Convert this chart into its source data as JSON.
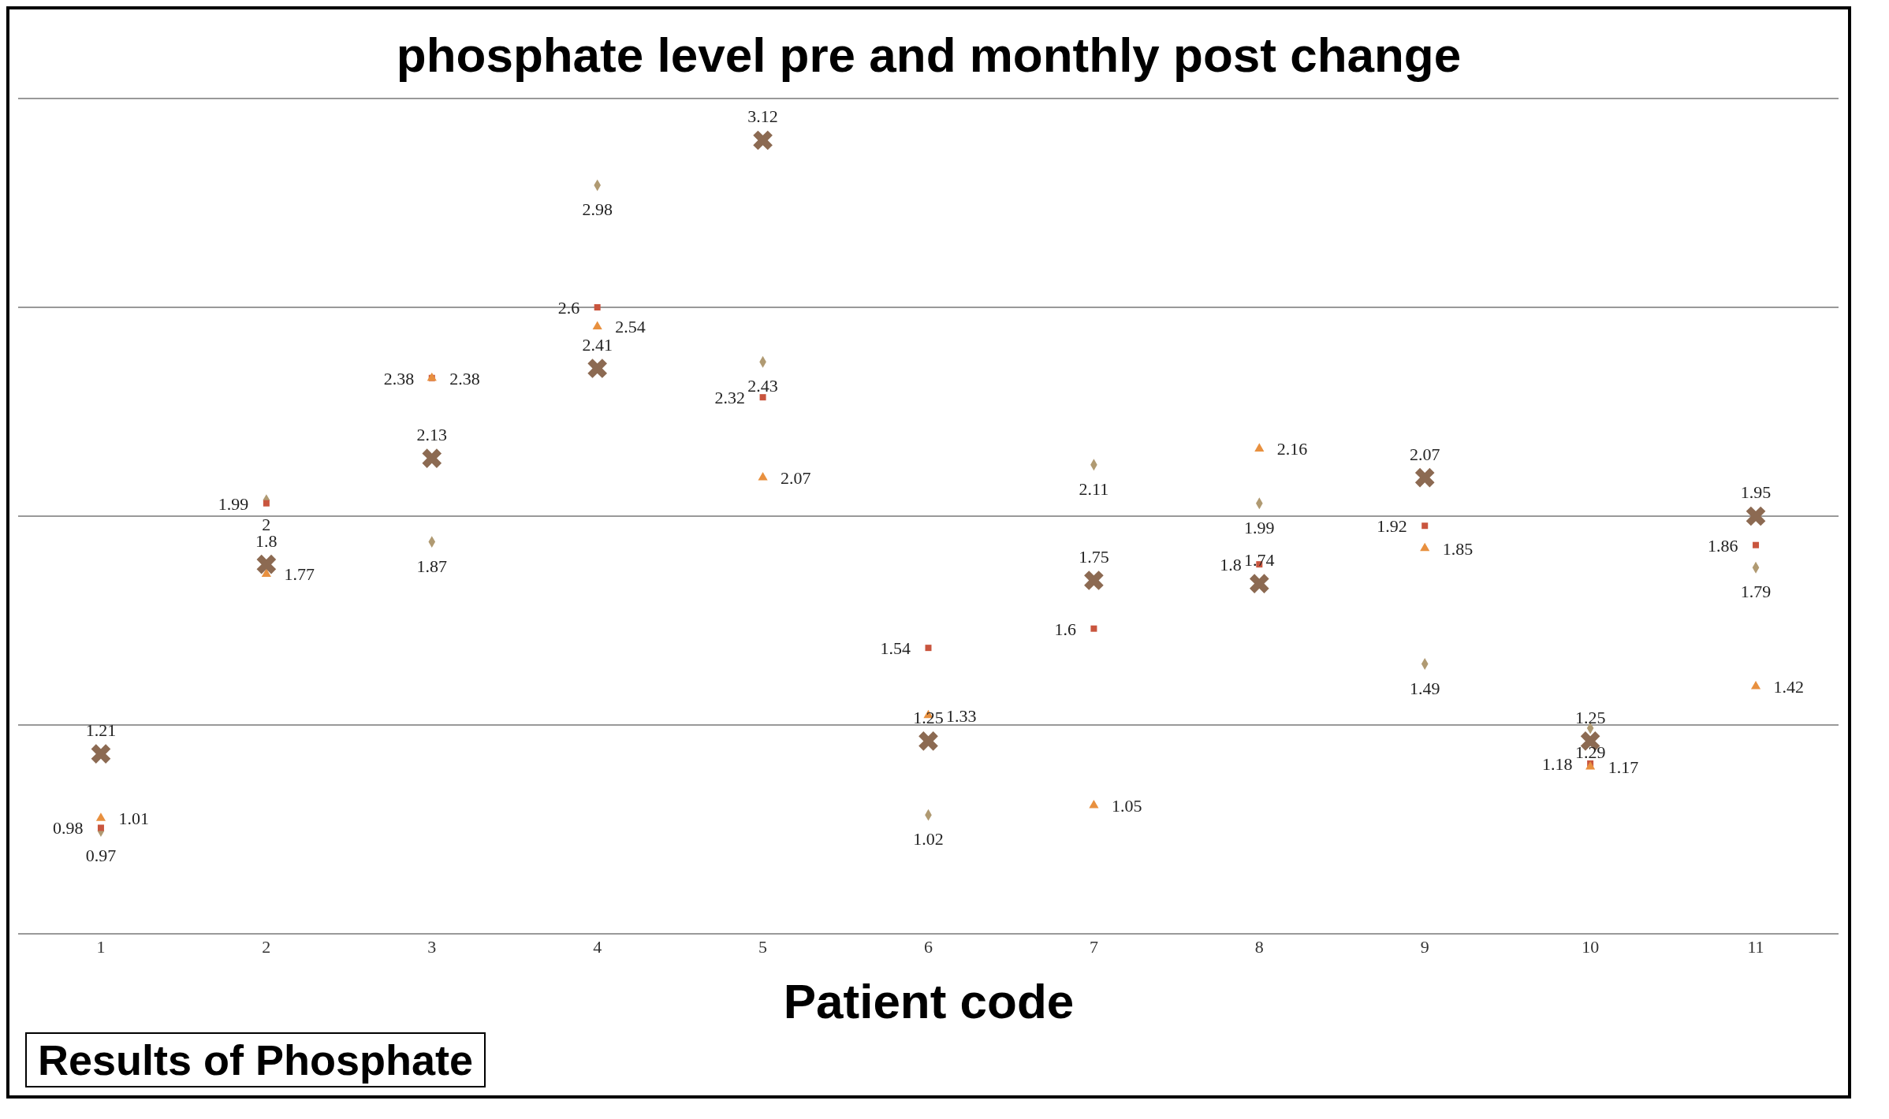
{
  "chart_data": {
    "type": "scatter",
    "title": "phosphate level pre and monthly post change",
    "xlabel": "Patient code",
    "categories": [
      "1",
      "2",
      "3",
      "4",
      "5",
      "6",
      "7",
      "8",
      "9",
      "10",
      "11"
    ],
    "series": [
      {
        "color": "#b09a72",
        "marker": "diamond",
        "values": [
          0.97,
          2,
          1.87,
          2.98,
          2.43,
          1.02,
          2.11,
          1.99,
          1.49,
          1.29,
          1.79
        ]
      },
      {
        "color": "#c9553e",
        "marker": "square",
        "values": [
          0.98,
          1.99,
          2.38,
          2.6,
          2.32,
          1.54,
          1.6,
          1.8,
          1.92,
          1.18,
          1.86
        ]
      },
      {
        "color": "#e8903f",
        "marker": "triangle",
        "values": [
          1.01,
          1.77,
          2.38,
          2.54,
          2.07,
          1.33,
          1.05,
          2.16,
          1.85,
          1.17,
          1.42
        ]
      },
      {
        "color": "#8c6a52",
        "marker": "cross",
        "values": [
          1.21,
          1.8,
          2.13,
          2.41,
          3.12,
          1.25,
          1.75,
          1.74,
          2.07,
          1.25,
          1.95
        ]
      }
    ],
    "tick_labels": "x",
    "grid": "y",
    "legend": false,
    "data_labels": true,
    "annotations": [
      "Results of Phosphate"
    ]
  }
}
